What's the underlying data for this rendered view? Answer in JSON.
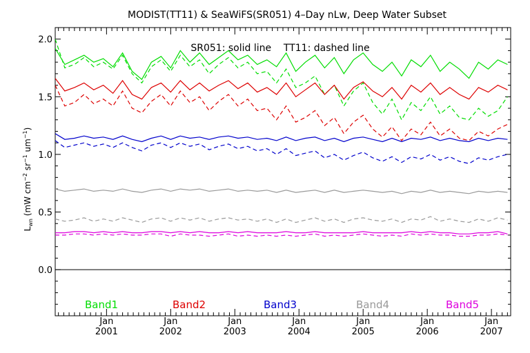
{
  "chart_data": {
    "type": "line",
    "title": "MODIST(TT11) & SeaWiFS(SR051) 4–Day nLw, Deep Water Subset",
    "annotation": "SR051: solid line    TT11: dashed line",
    "ylabel_main": "L",
    "ylabel_sub": "wn",
    "ylabel_rest": " (mW cm",
    "ylabel_exp1": "−2",
    "ylabel_mid": " sr",
    "ylabel_exp2": "−1",
    "ylabel_mid2": " um",
    "ylabel_exp3": "−1",
    "ylabel_end": ")",
    "xlim": [
      2000.2,
      2007.3
    ],
    "ylim": [
      -0.4,
      2.1
    ],
    "yticks": [
      0.0,
      0.5,
      1.0,
      1.5,
      2.0
    ],
    "ytick_labels": [
      "0.0",
      "0.5",
      "1.0",
      "1.5",
      "2.0"
    ],
    "xticks": [
      2001,
      2002,
      2003,
      2004,
      2005,
      2006,
      2007
    ],
    "xtick_month_label": "Jan",
    "xtick_year_labels": [
      "2001",
      "2002",
      "2003",
      "2004",
      "2005",
      "2006",
      "2007"
    ],
    "zero_line": true,
    "x": [
      2000.2,
      2000.35,
      2000.5,
      2000.65,
      2000.8,
      2000.95,
      2001.1,
      2001.25,
      2001.4,
      2001.55,
      2001.7,
      2001.85,
      2002.0,
      2002.15,
      2002.3,
      2002.45,
      2002.6,
      2002.75,
      2002.9,
      2003.05,
      2003.2,
      2003.35,
      2003.5,
      2003.65,
      2003.8,
      2003.95,
      2004.1,
      2004.25,
      2004.4,
      2004.55,
      2004.7,
      2004.85,
      2005.0,
      2005.15,
      2005.3,
      2005.45,
      2005.6,
      2005.75,
      2005.9,
      2006.05,
      2006.2,
      2006.35,
      2006.5,
      2006.65,
      2006.8,
      2006.95,
      2007.1,
      2007.25
    ],
    "series": [
      {
        "name": "Band1",
        "color": "#00dd00",
        "style": "solid",
        "values": [
          1.92,
          1.78,
          1.82,
          1.86,
          1.8,
          1.83,
          1.76,
          1.88,
          1.72,
          1.65,
          1.8,
          1.85,
          1.75,
          1.9,
          1.8,
          1.88,
          1.78,
          1.84,
          1.9,
          1.82,
          1.86,
          1.78,
          1.82,
          1.76,
          1.88,
          1.72,
          1.8,
          1.86,
          1.75,
          1.84,
          1.7,
          1.82,
          1.88,
          1.78,
          1.72,
          1.8,
          1.68,
          1.82,
          1.76,
          1.86,
          1.72,
          1.8,
          1.74,
          1.66,
          1.8,
          1.74,
          1.82,
          1.78
        ]
      },
      {
        "name": "Band1",
        "color": "#00dd00",
        "style": "dashed",
        "values": [
          2.0,
          1.75,
          1.78,
          1.84,
          1.76,
          1.8,
          1.74,
          1.86,
          1.7,
          1.62,
          1.76,
          1.82,
          1.72,
          1.86,
          1.76,
          1.82,
          1.7,
          1.78,
          1.84,
          1.75,
          1.8,
          1.7,
          1.72,
          1.62,
          1.74,
          1.58,
          1.62,
          1.68,
          1.52,
          1.6,
          1.42,
          1.55,
          1.62,
          1.45,
          1.35,
          1.48,
          1.3,
          1.45,
          1.38,
          1.5,
          1.35,
          1.42,
          1.32,
          1.3,
          1.4,
          1.33,
          1.38,
          1.5
        ]
      },
      {
        "name": "Band2",
        "color": "#dd0000",
        "style": "solid",
        "values": [
          1.66,
          1.55,
          1.58,
          1.62,
          1.56,
          1.6,
          1.53,
          1.64,
          1.52,
          1.48,
          1.58,
          1.62,
          1.54,
          1.64,
          1.56,
          1.62,
          1.55,
          1.6,
          1.64,
          1.57,
          1.62,
          1.54,
          1.58,
          1.52,
          1.62,
          1.5,
          1.56,
          1.62,
          1.52,
          1.6,
          1.48,
          1.58,
          1.63,
          1.55,
          1.5,
          1.58,
          1.48,
          1.6,
          1.54,
          1.62,
          1.52,
          1.58,
          1.52,
          1.48,
          1.58,
          1.54,
          1.6,
          1.56
        ]
      },
      {
        "name": "Band2",
        "color": "#dd0000",
        "style": "dashed",
        "values": [
          1.6,
          1.42,
          1.45,
          1.52,
          1.44,
          1.48,
          1.42,
          1.55,
          1.4,
          1.36,
          1.46,
          1.52,
          1.42,
          1.55,
          1.45,
          1.5,
          1.38,
          1.46,
          1.52,
          1.42,
          1.48,
          1.38,
          1.4,
          1.3,
          1.42,
          1.28,
          1.32,
          1.38,
          1.25,
          1.32,
          1.18,
          1.28,
          1.34,
          1.22,
          1.15,
          1.24,
          1.12,
          1.22,
          1.17,
          1.28,
          1.16,
          1.22,
          1.14,
          1.12,
          1.2,
          1.16,
          1.22,
          1.26
        ]
      },
      {
        "name": "Band3",
        "color": "#0000cc",
        "style": "solid",
        "values": [
          1.18,
          1.13,
          1.14,
          1.16,
          1.14,
          1.15,
          1.13,
          1.16,
          1.13,
          1.11,
          1.14,
          1.16,
          1.13,
          1.16,
          1.14,
          1.15,
          1.13,
          1.15,
          1.16,
          1.14,
          1.15,
          1.13,
          1.14,
          1.12,
          1.15,
          1.12,
          1.14,
          1.15,
          1.12,
          1.14,
          1.11,
          1.14,
          1.15,
          1.13,
          1.11,
          1.14,
          1.11,
          1.14,
          1.13,
          1.15,
          1.12,
          1.14,
          1.12,
          1.11,
          1.14,
          1.12,
          1.14,
          1.13
        ]
      },
      {
        "name": "Band3",
        "color": "#0000cc",
        "style": "dashed",
        "values": [
          1.12,
          1.06,
          1.08,
          1.1,
          1.07,
          1.09,
          1.06,
          1.1,
          1.06,
          1.03,
          1.08,
          1.1,
          1.06,
          1.1,
          1.07,
          1.09,
          1.04,
          1.07,
          1.09,
          1.05,
          1.07,
          1.03,
          1.05,
          1.0,
          1.05,
          0.99,
          1.01,
          1.03,
          0.97,
          1.0,
          0.95,
          0.99,
          1.02,
          0.97,
          0.94,
          0.98,
          0.93,
          0.98,
          0.96,
          1.0,
          0.95,
          0.98,
          0.94,
          0.92,
          0.97,
          0.95,
          0.98,
          1.0
        ]
      },
      {
        "name": "Band4",
        "color": "#999999",
        "style": "solid",
        "values": [
          0.7,
          0.68,
          0.69,
          0.7,
          0.68,
          0.69,
          0.68,
          0.7,
          0.68,
          0.67,
          0.69,
          0.7,
          0.68,
          0.7,
          0.69,
          0.7,
          0.68,
          0.69,
          0.7,
          0.68,
          0.69,
          0.68,
          0.69,
          0.67,
          0.69,
          0.67,
          0.68,
          0.69,
          0.67,
          0.69,
          0.67,
          0.68,
          0.69,
          0.68,
          0.67,
          0.68,
          0.66,
          0.68,
          0.67,
          0.69,
          0.67,
          0.68,
          0.67,
          0.66,
          0.68,
          0.67,
          0.68,
          0.67
        ]
      },
      {
        "name": "Band4",
        "color": "#999999",
        "style": "dashed",
        "values": [
          0.44,
          0.42,
          0.43,
          0.45,
          0.42,
          0.44,
          0.42,
          0.45,
          0.43,
          0.41,
          0.44,
          0.45,
          0.42,
          0.45,
          0.43,
          0.45,
          0.42,
          0.44,
          0.45,
          0.43,
          0.44,
          0.42,
          0.44,
          0.41,
          0.44,
          0.41,
          0.43,
          0.45,
          0.42,
          0.44,
          0.41,
          0.44,
          0.45,
          0.43,
          0.42,
          0.44,
          0.41,
          0.44,
          0.43,
          0.46,
          0.42,
          0.44,
          0.42,
          0.41,
          0.44,
          0.42,
          0.45,
          0.43
        ]
      },
      {
        "name": "Band5",
        "color": "#dd00dd",
        "style": "solid",
        "values": [
          0.32,
          0.32,
          0.33,
          0.33,
          0.32,
          0.33,
          0.32,
          0.33,
          0.32,
          0.32,
          0.33,
          0.33,
          0.32,
          0.33,
          0.32,
          0.33,
          0.32,
          0.32,
          0.33,
          0.32,
          0.33,
          0.32,
          0.32,
          0.32,
          0.33,
          0.32,
          0.32,
          0.33,
          0.32,
          0.32,
          0.32,
          0.32,
          0.33,
          0.32,
          0.32,
          0.32,
          0.32,
          0.33,
          0.32,
          0.33,
          0.32,
          0.32,
          0.31,
          0.31,
          0.32,
          0.32,
          0.33,
          0.31
        ]
      },
      {
        "name": "Band5",
        "color": "#dd00dd",
        "style": "dashed",
        "values": [
          0.3,
          0.3,
          0.31,
          0.31,
          0.3,
          0.31,
          0.3,
          0.31,
          0.3,
          0.3,
          0.31,
          0.31,
          0.29,
          0.31,
          0.3,
          0.3,
          0.29,
          0.3,
          0.31,
          0.29,
          0.3,
          0.29,
          0.3,
          0.29,
          0.3,
          0.29,
          0.3,
          0.31,
          0.29,
          0.3,
          0.29,
          0.3,
          0.31,
          0.3,
          0.29,
          0.3,
          0.29,
          0.31,
          0.3,
          0.31,
          0.3,
          0.3,
          0.29,
          0.29,
          0.3,
          0.3,
          0.31,
          0.3
        ]
      }
    ],
    "legend": [
      {
        "label": "Band1",
        "color": "#00dd00"
      },
      {
        "label": "Band2",
        "color": "#dd0000"
      },
      {
        "label": "Band3",
        "color": "#0000cc"
      },
      {
        "label": "Band4",
        "color": "#999999"
      },
      {
        "label": "Band5",
        "color": "#dd00dd"
      }
    ],
    "legend_placement": "bottom-inside",
    "grid": false
  }
}
